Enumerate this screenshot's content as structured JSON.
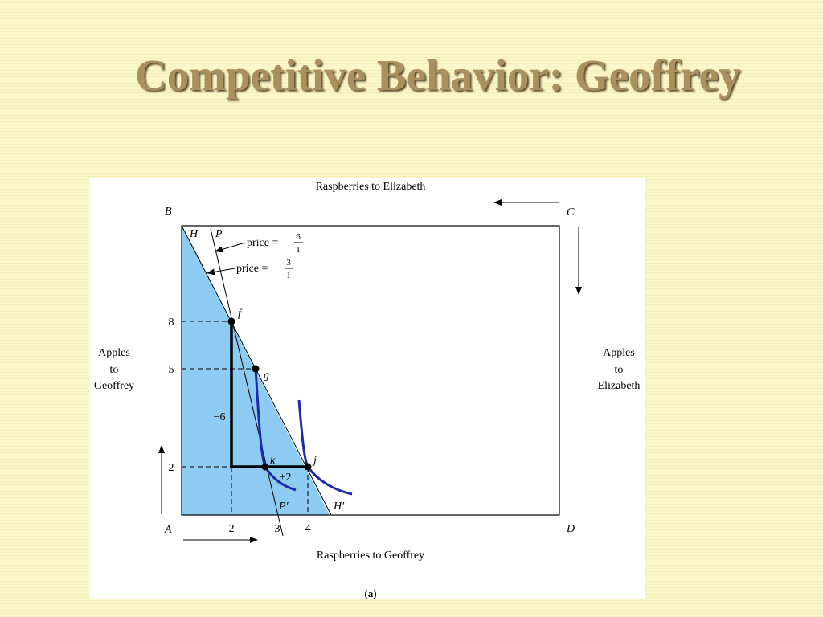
{
  "title": "Competitive Behavior: Geoffrey",
  "figure": {
    "top_label": "Raspberries to Elizabeth",
    "bottom_label": "Raspberries to Geoffrey",
    "left_label": [
      "Apples",
      "to",
      "Geoffrey"
    ],
    "right_label": [
      "Apples",
      "to",
      "Elizabeth"
    ],
    "corners": {
      "A": "A",
      "B": "B",
      "C": "C",
      "D": "D"
    },
    "lines": {
      "H": "H",
      "P": "P",
      "P_prime": "P′",
      "H_prime": "H′"
    },
    "price_labels": [
      {
        "text": "price =",
        "numerator": "6",
        "denominator": "1"
      },
      {
        "text": "price =",
        "numerator": "3",
        "denominator": "1"
      }
    ],
    "points": {
      "f": "f",
      "g": "g",
      "k": "k",
      "j": "j"
    },
    "x_ticks": [
      "2",
      "3",
      "4"
    ],
    "y_ticks": [
      "8",
      "5",
      "2"
    ],
    "annotations": {
      "minus": "−6",
      "plus": "+2"
    },
    "caption": "(a)"
  }
}
